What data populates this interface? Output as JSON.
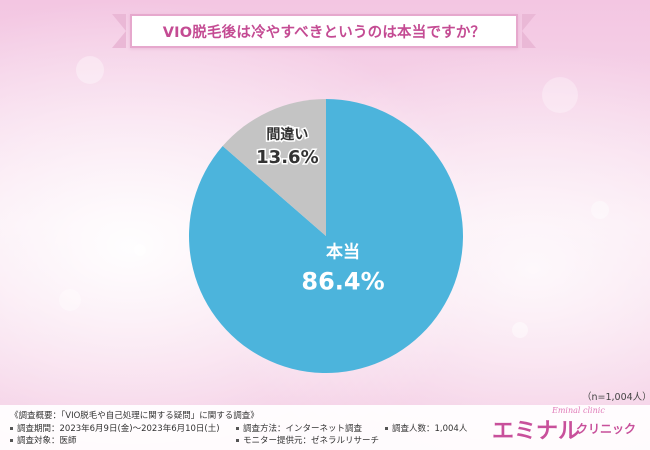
{
  "title": "VIO脱毛後は冷やすべきというのは本当ですか？",
  "sample_size": "（n=1,004人）",
  "chart_data": {
    "type": "pie",
    "title": "VIO脱毛後は冷やすべきというのは本当ですか？",
    "slices": [
      {
        "label": "本当",
        "value": 86.4,
        "value_label": "86.4%",
        "color": "#4cb4dc"
      },
      {
        "label": "間違い",
        "value": 13.6,
        "value_label": "13.6%",
        "color": "#c4c4c4"
      }
    ],
    "start": "12 o'clock",
    "direction": "clockwise"
  },
  "footer": {
    "heading": "《調査概要：「VIO脱毛や自己処理に関する疑問」に関する調査》",
    "period": "調査期間：2023年6月9日(金)〜2023年6月10日(土)",
    "target": "調査対象：医師",
    "method": "調査方法：インターネット調査",
    "provider": "モニター提供元：ゼネラルリサーチ",
    "count": "調査人数：1,004人"
  },
  "logo": {
    "main": "エミナル",
    "sub": "クリニック",
    "script": "Eminal clinic"
  },
  "colors": {
    "title_text": "#c44b93",
    "title_border": "#e6a8cd",
    "slice_primary": "#4cb4dc",
    "slice_secondary": "#c4c4c4",
    "logo": "#c8509b"
  }
}
